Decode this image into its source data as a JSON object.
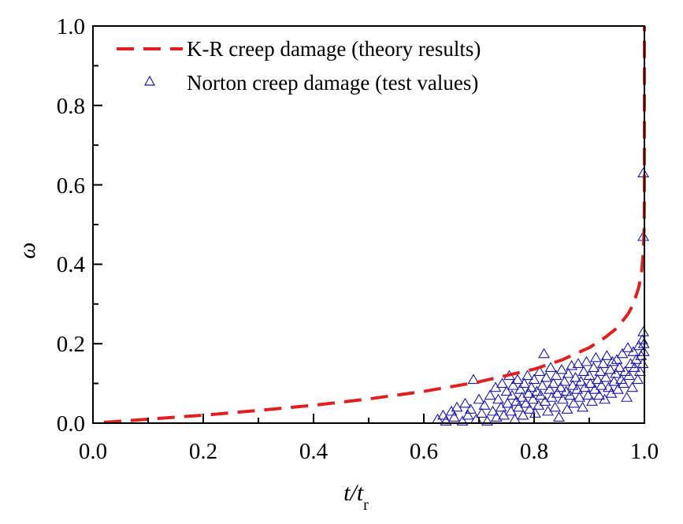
{
  "chart_data": {
    "type": "line+scatter",
    "xlabel": "t/t",
    "xlabel_sub": "r",
    "ylabel": "ω",
    "xlim": [
      0.0,
      1.0
    ],
    "ylim": [
      0.0,
      1.0
    ],
    "xticks": [
      "0.0",
      "0.2",
      "0.4",
      "0.6",
      "0.8",
      "1.0"
    ],
    "yticks": [
      "0.0",
      "0.2",
      "0.4",
      "0.6",
      "0.8",
      "1.0"
    ],
    "grid": false,
    "legend_position": "top-left",
    "series": [
      {
        "name": "K-R creep damage (theory results)",
        "kind": "dashed-line",
        "color": "#e02020",
        "x": [
          0.02,
          0.1,
          0.2,
          0.3,
          0.4,
          0.5,
          0.6,
          0.7,
          0.8,
          0.85,
          0.9,
          0.93,
          0.95,
          0.97,
          0.98,
          0.99,
          0.995,
          0.998,
          0.999,
          0.9995,
          0.9999,
          1.0
        ],
        "y": [
          0.002,
          0.01,
          0.02,
          0.032,
          0.045,
          0.061,
          0.08,
          0.104,
          0.136,
          0.159,
          0.19,
          0.217,
          0.239,
          0.274,
          0.3,
          0.343,
          0.382,
          0.43,
          0.466,
          0.5,
          0.57,
          1.0
        ]
      },
      {
        "name": "Norton creep damage (test values)",
        "kind": "scatter",
        "marker": "open-triangle",
        "color": "#1a1aa8",
        "points": [
          [
            0.625,
            0.01
          ],
          [
            0.635,
            0.02
          ],
          [
            0.64,
            0.005
          ],
          [
            0.65,
            0.03
          ],
          [
            0.655,
            0.015
          ],
          [
            0.66,
            0.04
          ],
          [
            0.67,
            0.005
          ],
          [
            0.675,
            0.05
          ],
          [
            0.68,
            0.02
          ],
          [
            0.685,
            0.035
          ],
          [
            0.69,
            0.11
          ],
          [
            0.695,
            0.01
          ],
          [
            0.7,
            0.06
          ],
          [
            0.705,
            0.025
          ],
          [
            0.71,
            0.045
          ],
          [
            0.715,
            0.005
          ],
          [
            0.72,
            0.07
          ],
          [
            0.725,
            0.03
          ],
          [
            0.73,
            0.09
          ],
          [
            0.732,
            0.015
          ],
          [
            0.735,
            0.06
          ],
          [
            0.74,
            0.04
          ],
          [
            0.742,
            0.1
          ],
          [
            0.745,
            0.02
          ],
          [
            0.75,
            0.08
          ],
          [
            0.752,
            0.05
          ],
          [
            0.755,
            0.12
          ],
          [
            0.758,
            0.03
          ],
          [
            0.76,
            0.07
          ],
          [
            0.762,
            0.095
          ],
          [
            0.765,
            0.01
          ],
          [
            0.768,
            0.055
          ],
          [
            0.77,
            0.11
          ],
          [
            0.772,
            0.04
          ],
          [
            0.775,
            0.085
          ],
          [
            0.778,
            0.065
          ],
          [
            0.78,
            0.02
          ],
          [
            0.782,
            0.1
          ],
          [
            0.785,
            0.05
          ],
          [
            0.788,
            0.12
          ],
          [
            0.79,
            0.075
          ],
          [
            0.792,
            0.035
          ],
          [
            0.795,
            0.09
          ],
          [
            0.798,
            0.06
          ],
          [
            0.8,
            0.11
          ],
          [
            0.802,
            0.025
          ],
          [
            0.805,
            0.08
          ],
          [
            0.808,
            0.045
          ],
          [
            0.81,
            0.13
          ],
          [
            0.812,
            0.07
          ],
          [
            0.815,
            0.095
          ],
          [
            0.818,
            0.175
          ],
          [
            0.82,
            0.055
          ],
          [
            0.822,
            0.115
          ],
          [
            0.825,
            0.03
          ],
          [
            0.828,
            0.085
          ],
          [
            0.83,
            0.14
          ],
          [
            0.832,
            0.065
          ],
          [
            0.835,
            0.1
          ],
          [
            0.838,
            0.04
          ],
          [
            0.84,
            0.12
          ],
          [
            0.842,
            0.075
          ],
          [
            0.845,
            0.015
          ],
          [
            0.848,
            0.09
          ],
          [
            0.85,
            0.135
          ],
          [
            0.852,
            0.06
          ],
          [
            0.855,
            0.105
          ],
          [
            0.858,
            0.08
          ],
          [
            0.86,
            0.035
          ],
          [
            0.862,
            0.125
          ],
          [
            0.865,
            0.07
          ],
          [
            0.868,
            0.145
          ],
          [
            0.87,
            0.095
          ],
          [
            0.872,
            0.05
          ],
          [
            0.875,
            0.115
          ],
          [
            0.878,
            0.085
          ],
          [
            0.88,
            0.15
          ],
          [
            0.882,
            0.065
          ],
          [
            0.885,
            0.105
          ],
          [
            0.888,
            0.04
          ],
          [
            0.89,
            0.13
          ],
          [
            0.892,
            0.09
          ],
          [
            0.895,
            0.155
          ],
          [
            0.898,
            0.07
          ],
          [
            0.9,
            0.12
          ],
          [
            0.902,
            0.1
          ],
          [
            0.905,
            0.055
          ],
          [
            0.908,
            0.14
          ],
          [
            0.91,
            0.085
          ],
          [
            0.912,
            0.165
          ],
          [
            0.915,
            0.11
          ],
          [
            0.918,
            0.07
          ],
          [
            0.92,
            0.13
          ],
          [
            0.922,
            0.095
          ],
          [
            0.925,
            0.15
          ],
          [
            0.928,
            0.06
          ],
          [
            0.93,
            0.115
          ],
          [
            0.932,
            0.17
          ],
          [
            0.935,
            0.09
          ],
          [
            0.938,
            0.135
          ],
          [
            0.94,
            0.075
          ],
          [
            0.942,
            0.155
          ],
          [
            0.945,
            0.105
          ],
          [
            0.948,
            0.125
          ],
          [
            0.95,
            0.16
          ],
          [
            0.952,
            0.085
          ],
          [
            0.955,
            0.14
          ],
          [
            0.958,
            0.11
          ],
          [
            0.96,
            0.175
          ],
          [
            0.962,
            0.1
          ],
          [
            0.965,
            0.13
          ],
          [
            0.968,
            0.065
          ],
          [
            0.97,
            0.19
          ],
          [
            0.972,
            0.12
          ],
          [
            0.975,
            0.15
          ],
          [
            0.978,
            0.09
          ],
          [
            0.98,
            0.18
          ],
          [
            0.982,
            0.14
          ],
          [
            0.985,
            0.16
          ],
          [
            0.988,
            0.11
          ],
          [
            0.99,
            0.195
          ],
          [
            0.992,
            0.13
          ],
          [
            0.994,
            0.17
          ],
          [
            0.996,
            0.21
          ],
          [
            0.997,
            0.15
          ],
          [
            0.998,
            0.23
          ],
          [
            0.999,
            0.18
          ],
          [
            0.999,
            0.2
          ],
          [
            0.998,
            0.47
          ],
          [
            0.998,
            0.63
          ]
        ]
      }
    ]
  }
}
